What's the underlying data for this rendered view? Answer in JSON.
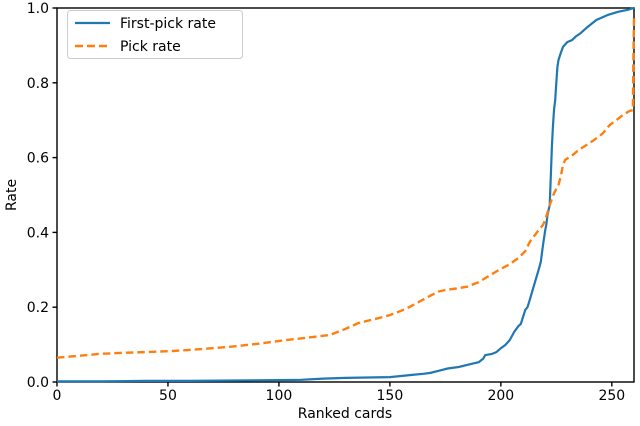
{
  "figure": {
    "background": "#ffffff",
    "spine_color": "#000000"
  },
  "chart_data": {
    "type": "line",
    "title": "",
    "xlabel": "Ranked cards",
    "ylabel": "Rate",
    "xlim": [
      0,
      260
    ],
    "ylim": [
      0.0,
      1.0
    ],
    "x_tick_labels": [
      "0",
      "50",
      "100",
      "150",
      "200",
      "250"
    ],
    "y_tick_labels": [
      "0.0",
      "0.2",
      "0.4",
      "0.6",
      "0.8",
      "1.0"
    ],
    "grid": false,
    "legend_position": "upper left",
    "series": [
      {
        "name": "First-pick rate",
        "color": "#1f77b4",
        "style": "solid",
        "points": [
          [
            0,
            0.002
          ],
          [
            20,
            0.002
          ],
          [
            40,
            0.003
          ],
          [
            60,
            0.003
          ],
          [
            80,
            0.004
          ],
          [
            100,
            0.005
          ],
          [
            110,
            0.006
          ],
          [
            120,
            0.009
          ],
          [
            130,
            0.011
          ],
          [
            140,
            0.012
          ],
          [
            150,
            0.013
          ],
          [
            155,
            0.016
          ],
          [
            160,
            0.019
          ],
          [
            165,
            0.022
          ],
          [
            168,
            0.024
          ],
          [
            172,
            0.03
          ],
          [
            176,
            0.036
          ],
          [
            181,
            0.04
          ],
          [
            185,
            0.046
          ],
          [
            190,
            0.053
          ],
          [
            192,
            0.062
          ],
          [
            193,
            0.072
          ],
          [
            196,
            0.075
          ],
          [
            198,
            0.08
          ],
          [
            200,
            0.09
          ],
          [
            202,
            0.099
          ],
          [
            204,
            0.112
          ],
          [
            206,
            0.134
          ],
          [
            208,
            0.15
          ],
          [
            209,
            0.155
          ],
          [
            211,
            0.193
          ],
          [
            212,
            0.2
          ],
          [
            213,
            0.219
          ],
          [
            215,
            0.259
          ],
          [
            216,
            0.28
          ],
          [
            217,
            0.3
          ],
          [
            218,
            0.321
          ],
          [
            219,
            0.366
          ],
          [
            220,
            0.406
          ],
          [
            220.5,
            0.42
          ],
          [
            221,
            0.447
          ],
          [
            221.5,
            0.46
          ],
          [
            222,
            0.473
          ],
          [
            222.5,
            0.55
          ],
          [
            223,
            0.63
          ],
          [
            223.5,
            0.687
          ],
          [
            224,
            0.73
          ],
          [
            224.5,
            0.754
          ],
          [
            225,
            0.8
          ],
          [
            225.5,
            0.842
          ],
          [
            226,
            0.861
          ],
          [
            227,
            0.88
          ],
          [
            228,
            0.896
          ],
          [
            230,
            0.909
          ],
          [
            232,
            0.914
          ],
          [
            234,
            0.925
          ],
          [
            236,
            0.933
          ],
          [
            239,
            0.949
          ],
          [
            243,
            0.968
          ],
          [
            248,
            0.981
          ],
          [
            253,
            0.99
          ],
          [
            257,
            0.995
          ],
          [
            260,
            1.0
          ]
        ]
      },
      {
        "name": "Pick rate",
        "color": "#ff7f0e",
        "style": "dashed",
        "points": [
          [
            0,
            0.065
          ],
          [
            10,
            0.07
          ],
          [
            19,
            0.075
          ],
          [
            30,
            0.078
          ],
          [
            40,
            0.08
          ],
          [
            52,
            0.083
          ],
          [
            65,
            0.088
          ],
          [
            78,
            0.094
          ],
          [
            90,
            0.102
          ],
          [
            103,
            0.112
          ],
          [
            112,
            0.118
          ],
          [
            123,
            0.126
          ],
          [
            130,
            0.142
          ],
          [
            136,
            0.158
          ],
          [
            143,
            0.168
          ],
          [
            150,
            0.179
          ],
          [
            157,
            0.195
          ],
          [
            163,
            0.214
          ],
          [
            168,
            0.23
          ],
          [
            172,
            0.242
          ],
          [
            175,
            0.246
          ],
          [
            180,
            0.25
          ],
          [
            185,
            0.255
          ],
          [
            190,
            0.267
          ],
          [
            195,
            0.285
          ],
          [
            199,
            0.299
          ],
          [
            204,
            0.315
          ],
          [
            208,
            0.332
          ],
          [
            211,
            0.35
          ],
          [
            213,
            0.374
          ],
          [
            215,
            0.39
          ],
          [
            217,
            0.406
          ],
          [
            219,
            0.42
          ],
          [
            220,
            0.433
          ],
          [
            222,
            0.473
          ],
          [
            224,
            0.505
          ],
          [
            226,
            0.527
          ],
          [
            227,
            0.55
          ],
          [
            228,
            0.58
          ],
          [
            229,
            0.594
          ],
          [
            232,
            0.605
          ],
          [
            235,
            0.62
          ],
          [
            239,
            0.635
          ],
          [
            242,
            0.647
          ],
          [
            246,
            0.665
          ],
          [
            249,
            0.687
          ],
          [
            252,
            0.7
          ],
          [
            255,
            0.714
          ],
          [
            258,
            0.725
          ],
          [
            259.5,
            0.727
          ],
          [
            259.7,
            0.85
          ],
          [
            260,
            0.973
          ]
        ]
      }
    ]
  }
}
